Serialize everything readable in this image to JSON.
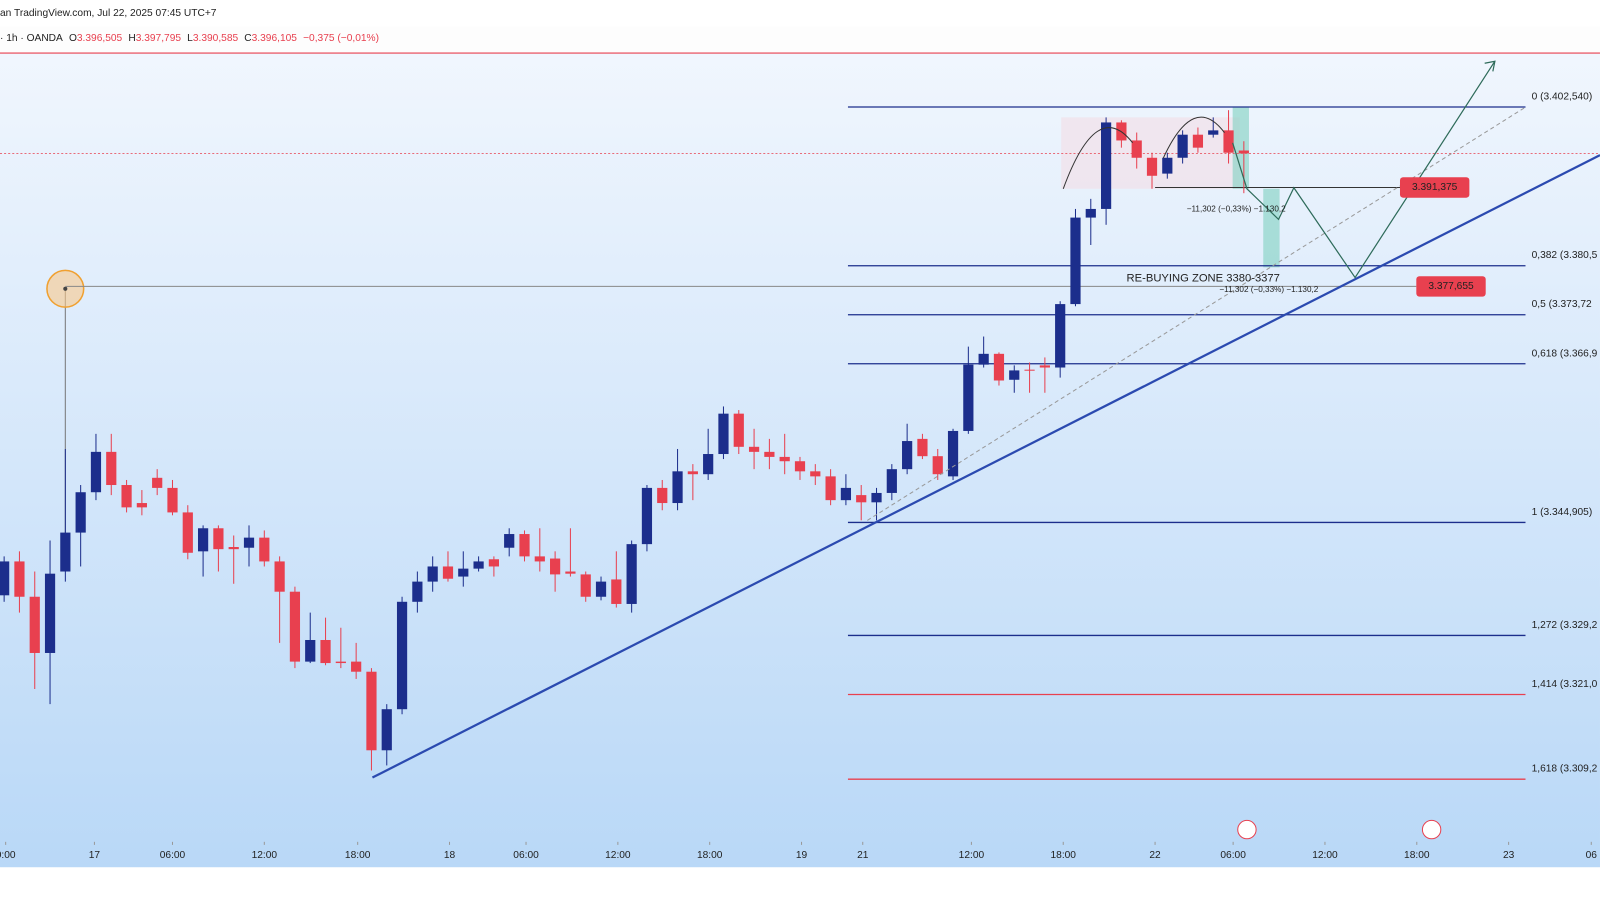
{
  "header": {
    "source": "an TradingView.com, Jul 22, 2025 07:45 UTC+7",
    "symbol": "· 1h · OANDA",
    "ohlc": [
      {
        "label": "O",
        "value": "3.396,505"
      },
      {
        "label": "H",
        "value": "3.397,795"
      },
      {
        "label": "L",
        "value": "3.390,585"
      },
      {
        "label": "C",
        "value": "3.396,105"
      }
    ],
    "change": "−0,375 (−0,01%)"
  },
  "chart_data": {
    "type": "candlestick",
    "up_color": "#1c2e8c",
    "down_color": "#e8404f",
    "xlim": [
      -0.27,
      104.27
    ],
    "ylim": [
      3300.6,
      3409.6
    ],
    "xticks": [
      {
        "value": 0.1,
        "label": "0:00"
      },
      {
        "value": 5.9,
        "label": "17"
      },
      {
        "value": 11,
        "label": "06:00"
      },
      {
        "value": 17,
        "label": "12:00"
      },
      {
        "value": 23.1,
        "label": "18:00"
      },
      {
        "value": 29.1,
        "label": "18"
      },
      {
        "value": 34.1,
        "label": "06:00"
      },
      {
        "value": 40.1,
        "label": "12:00"
      },
      {
        "value": 46.1,
        "label": "18:00"
      },
      {
        "value": 52.1,
        "label": "19"
      },
      {
        "value": 56.1,
        "label": "21"
      },
      {
        "value": 63.2,
        "label": "12:00"
      },
      {
        "value": 69.2,
        "label": "18:00"
      },
      {
        "value": 75.2,
        "label": "22"
      },
      {
        "value": 80.3,
        "label": "06:00"
      },
      {
        "value": 86.3,
        "label": "12:00"
      },
      {
        "value": 92.3,
        "label": "18:00"
      },
      {
        "value": 98.3,
        "label": "23"
      },
      {
        "value": 103.7,
        "label": "06"
      }
    ],
    "candles": [
      {
        "o": 3334.8,
        "h": 3340.2,
        "l": 3333.9,
        "c": 3339.5
      },
      {
        "o": 3339.5,
        "h": 3340.9,
        "l": 3332.4,
        "c": 3334.6
      },
      {
        "o": 3334.6,
        "h": 3338.1,
        "l": 3321.8,
        "c": 3326.8
      },
      {
        "o": 3326.8,
        "h": 3342.4,
        "l": 3319.7,
        "c": 3337.8
      },
      {
        "o": 3338.1,
        "h": 3355.1,
        "l": 3336.7,
        "c": 3343.5
      },
      {
        "o": 3343.5,
        "h": 3350.1,
        "l": 3338.8,
        "c": 3349.1
      },
      {
        "o": 3349.1,
        "h": 3357.2,
        "l": 3348.0,
        "c": 3354.7
      },
      {
        "o": 3354.7,
        "h": 3357.2,
        "l": 3348.7,
        "c": 3350.1
      },
      {
        "o": 3350.1,
        "h": 3350.8,
        "l": 3346.3,
        "c": 3347.0
      },
      {
        "o": 3347.6,
        "h": 3349.4,
        "l": 3345.9,
        "c": 3347.0
      },
      {
        "o": 3351.1,
        "h": 3352.3,
        "l": 3348.7,
        "c": 3349.7
      },
      {
        "o": 3349.7,
        "h": 3350.8,
        "l": 3345.9,
        "c": 3346.3
      },
      {
        "o": 3346.3,
        "h": 3347.3,
        "l": 3339.8,
        "c": 3340.7
      },
      {
        "o": 3340.9,
        "h": 3344.5,
        "l": 3337.4,
        "c": 3344.1
      },
      {
        "o": 3344.1,
        "h": 3344.5,
        "l": 3338.1,
        "c": 3341.2
      },
      {
        "o": 3341.5,
        "h": 3343.1,
        "l": 3336.4,
        "c": 3341.2
      },
      {
        "o": 3341.4,
        "h": 3344.5,
        "l": 3338.8,
        "c": 3342.8
      },
      {
        "o": 3342.8,
        "h": 3343.8,
        "l": 3338.8,
        "c": 3339.5
      },
      {
        "o": 3339.5,
        "h": 3340.2,
        "l": 3328.2,
        "c": 3335.3
      },
      {
        "o": 3335.3,
        "h": 3336.0,
        "l": 3324.7,
        "c": 3325.6
      },
      {
        "o": 3325.6,
        "h": 3332.4,
        "l": 3325.4,
        "c": 3328.6
      },
      {
        "o": 3328.6,
        "h": 3331.7,
        "l": 3325.1,
        "c": 3325.4
      },
      {
        "o": 3325.6,
        "h": 3330.3,
        "l": 3324.7,
        "c": 3325.4
      },
      {
        "o": 3325.6,
        "h": 3328.2,
        "l": 3323.2,
        "c": 3324.2
      },
      {
        "o": 3324.2,
        "h": 3324.7,
        "l": 3310.5,
        "c": 3313.3
      },
      {
        "o": 3313.3,
        "h": 3319.7,
        "l": 3311.2,
        "c": 3319.0
      },
      {
        "o": 3319.0,
        "h": 3334.6,
        "l": 3318.3,
        "c": 3333.9
      },
      {
        "o": 3333.9,
        "h": 3338.1,
        "l": 3332.4,
        "c": 3336.7
      },
      {
        "o": 3336.7,
        "h": 3340.2,
        "l": 3335.3,
        "c": 3338.8
      },
      {
        "o": 3338.8,
        "h": 3340.9,
        "l": 3336.7,
        "c": 3337.1
      },
      {
        "o": 3337.4,
        "h": 3340.9,
        "l": 3336.0,
        "c": 3338.5
      },
      {
        "o": 3338.5,
        "h": 3340.2,
        "l": 3338.1,
        "c": 3339.5
      },
      {
        "o": 3339.8,
        "h": 3340.2,
        "l": 3337.4,
        "c": 3338.8
      },
      {
        "o": 3341.4,
        "h": 3344.1,
        "l": 3340.2,
        "c": 3343.3
      },
      {
        "o": 3343.3,
        "h": 3343.8,
        "l": 3339.5,
        "c": 3340.2
      },
      {
        "o": 3340.2,
        "h": 3344.1,
        "l": 3338.1,
        "c": 3339.5
      },
      {
        "o": 3339.9,
        "h": 3340.9,
        "l": 3335.3,
        "c": 3337.7
      },
      {
        "o": 3338.1,
        "h": 3344.1,
        "l": 3337.4,
        "c": 3337.8
      },
      {
        "o": 3337.7,
        "h": 3338.1,
        "l": 3333.9,
        "c": 3334.6
      },
      {
        "o": 3334.6,
        "h": 3337.4,
        "l": 3334.1,
        "c": 3336.7
      },
      {
        "o": 3337.0,
        "h": 3340.9,
        "l": 3333.1,
        "c": 3333.6
      },
      {
        "o": 3333.6,
        "h": 3342.4,
        "l": 3332.4,
        "c": 3341.9
      },
      {
        "o": 3341.9,
        "h": 3350.1,
        "l": 3340.9,
        "c": 3349.7
      },
      {
        "o": 3349.7,
        "h": 3350.8,
        "l": 3346.6,
        "c": 3347.6
      },
      {
        "o": 3347.6,
        "h": 3355.1,
        "l": 3346.6,
        "c": 3352.0
      },
      {
        "o": 3352.0,
        "h": 3353.0,
        "l": 3348.0,
        "c": 3351.6
      },
      {
        "o": 3351.6,
        "h": 3357.9,
        "l": 3350.8,
        "c": 3354.4
      },
      {
        "o": 3354.4,
        "h": 3361.0,
        "l": 3353.7,
        "c": 3360.0
      },
      {
        "o": 3360.0,
        "h": 3360.5,
        "l": 3354.4,
        "c": 3355.4
      },
      {
        "o": 3355.4,
        "h": 3357.9,
        "l": 3352.3,
        "c": 3354.7
      },
      {
        "o": 3354.7,
        "h": 3356.5,
        "l": 3352.3,
        "c": 3354.0
      },
      {
        "o": 3354.0,
        "h": 3357.2,
        "l": 3351.6,
        "c": 3353.4
      },
      {
        "o": 3353.4,
        "h": 3354.0,
        "l": 3350.8,
        "c": 3352.0
      },
      {
        "o": 3352.0,
        "h": 3353.0,
        "l": 3350.1,
        "c": 3351.3
      },
      {
        "o": 3351.3,
        "h": 3352.3,
        "l": 3347.3,
        "c": 3348.0
      },
      {
        "o": 3348.0,
        "h": 3351.6,
        "l": 3347.3,
        "c": 3349.7
      },
      {
        "o": 3348.7,
        "h": 3350.1,
        "l": 3345.2,
        "c": 3347.7
      },
      {
        "o": 3347.7,
        "h": 3349.7,
        "l": 3345.2,
        "c": 3349.0
      },
      {
        "o": 3349.0,
        "h": 3353.0,
        "l": 3348.0,
        "c": 3352.3
      },
      {
        "o": 3352.3,
        "h": 3358.6,
        "l": 3351.6,
        "c": 3356.2
      },
      {
        "o": 3356.5,
        "h": 3357.2,
        "l": 3353.7,
        "c": 3354.1
      },
      {
        "o": 3354.1,
        "h": 3355.1,
        "l": 3350.8,
        "c": 3351.6
      },
      {
        "o": 3351.3,
        "h": 3357.9,
        "l": 3350.8,
        "c": 3357.6
      },
      {
        "o": 3357.6,
        "h": 3369.3,
        "l": 3357.2,
        "c": 3366.8
      },
      {
        "o": 3366.8,
        "h": 3370.7,
        "l": 3366.4,
        "c": 3368.3
      },
      {
        "o": 3368.3,
        "h": 3368.5,
        "l": 3363.9,
        "c": 3364.6
      },
      {
        "o": 3364.7,
        "h": 3366.7,
        "l": 3362.9,
        "c": 3366.0
      },
      {
        "o": 3366.1,
        "h": 3367.1,
        "l": 3362.9,
        "c": 3366.0
      },
      {
        "o": 3366.7,
        "h": 3367.8,
        "l": 3362.9,
        "c": 3366.4
      },
      {
        "o": 3366.4,
        "h": 3375.6,
        "l": 3365.0,
        "c": 3375.2
      },
      {
        "o": 3375.2,
        "h": 3388.4,
        "l": 3374.9,
        "c": 3387.2
      },
      {
        "o": 3387.2,
        "h": 3389.8,
        "l": 3383.4,
        "c": 3388.4
      },
      {
        "o": 3388.4,
        "h": 3401.1,
        "l": 3386.2,
        "c": 3400.4
      },
      {
        "o": 3400.4,
        "h": 3400.7,
        "l": 3396.9,
        "c": 3397.9
      },
      {
        "o": 3397.9,
        "h": 3399.0,
        "l": 3394.0,
        "c": 3395.5
      },
      {
        "o": 3395.5,
        "h": 3396.2,
        "l": 3391.2,
        "c": 3393.0
      },
      {
        "o": 3393.3,
        "h": 3396.2,
        "l": 3392.6,
        "c": 3395.5
      },
      {
        "o": 3395.5,
        "h": 3399.3,
        "l": 3394.7,
        "c": 3398.7
      },
      {
        "o": 3398.7,
        "h": 3399.7,
        "l": 3396.2,
        "c": 3396.9
      },
      {
        "o": 3398.7,
        "h": 3401.1,
        "l": 3398.3,
        "c": 3399.3
      },
      {
        "o": 3399.3,
        "h": 3402.1,
        "l": 3394.7,
        "c": 3396.2
      },
      {
        "o": 3396.505,
        "h": 3397.795,
        "l": 3390.585,
        "c": 3396.105
      }
    ],
    "current_price": 3396.105,
    "fib_levels": [
      {
        "label": "0 (3.402,540)",
        "value": 3402.54,
        "color": "#1c2e8c"
      },
      {
        "label": "0,382 (3.380,5",
        "value": 3380.52,
        "color": "#1c2e8c"
      },
      {
        "label": "0,5 (3.373,72",
        "value": 3373.72,
        "color": "#1c2e8c"
      },
      {
        "label": "0,618 (3.366,9",
        "value": 3366.92,
        "color": "#1c2e8c"
      },
      {
        "label": "1 (3.344,905)",
        "value": 3344.905,
        "color": "#1c2e8c"
      },
      {
        "label": "1,272 (3.329,2",
        "value": 3329.23,
        "color": "#1c2e8c"
      },
      {
        "label": "1,414 (3.321,0",
        "value": 3321.04,
        "color": "#e8404f"
      },
      {
        "label": "1,618 (3.309,2",
        "value": 3309.29,
        "color": "#e8404f"
      }
    ],
    "price_tags": [
      {
        "label": "3.391,375",
        "value": 3391.375
      },
      {
        "label": "3.377,655",
        "value": 3377.655
      }
    ],
    "annotations": [
      "RE-BUYING ZONE 3380-3377",
      "−11,302 (−0,33%) −1.130,2",
      "−11,302 (−0,33%) −1.130,2"
    ]
  }
}
